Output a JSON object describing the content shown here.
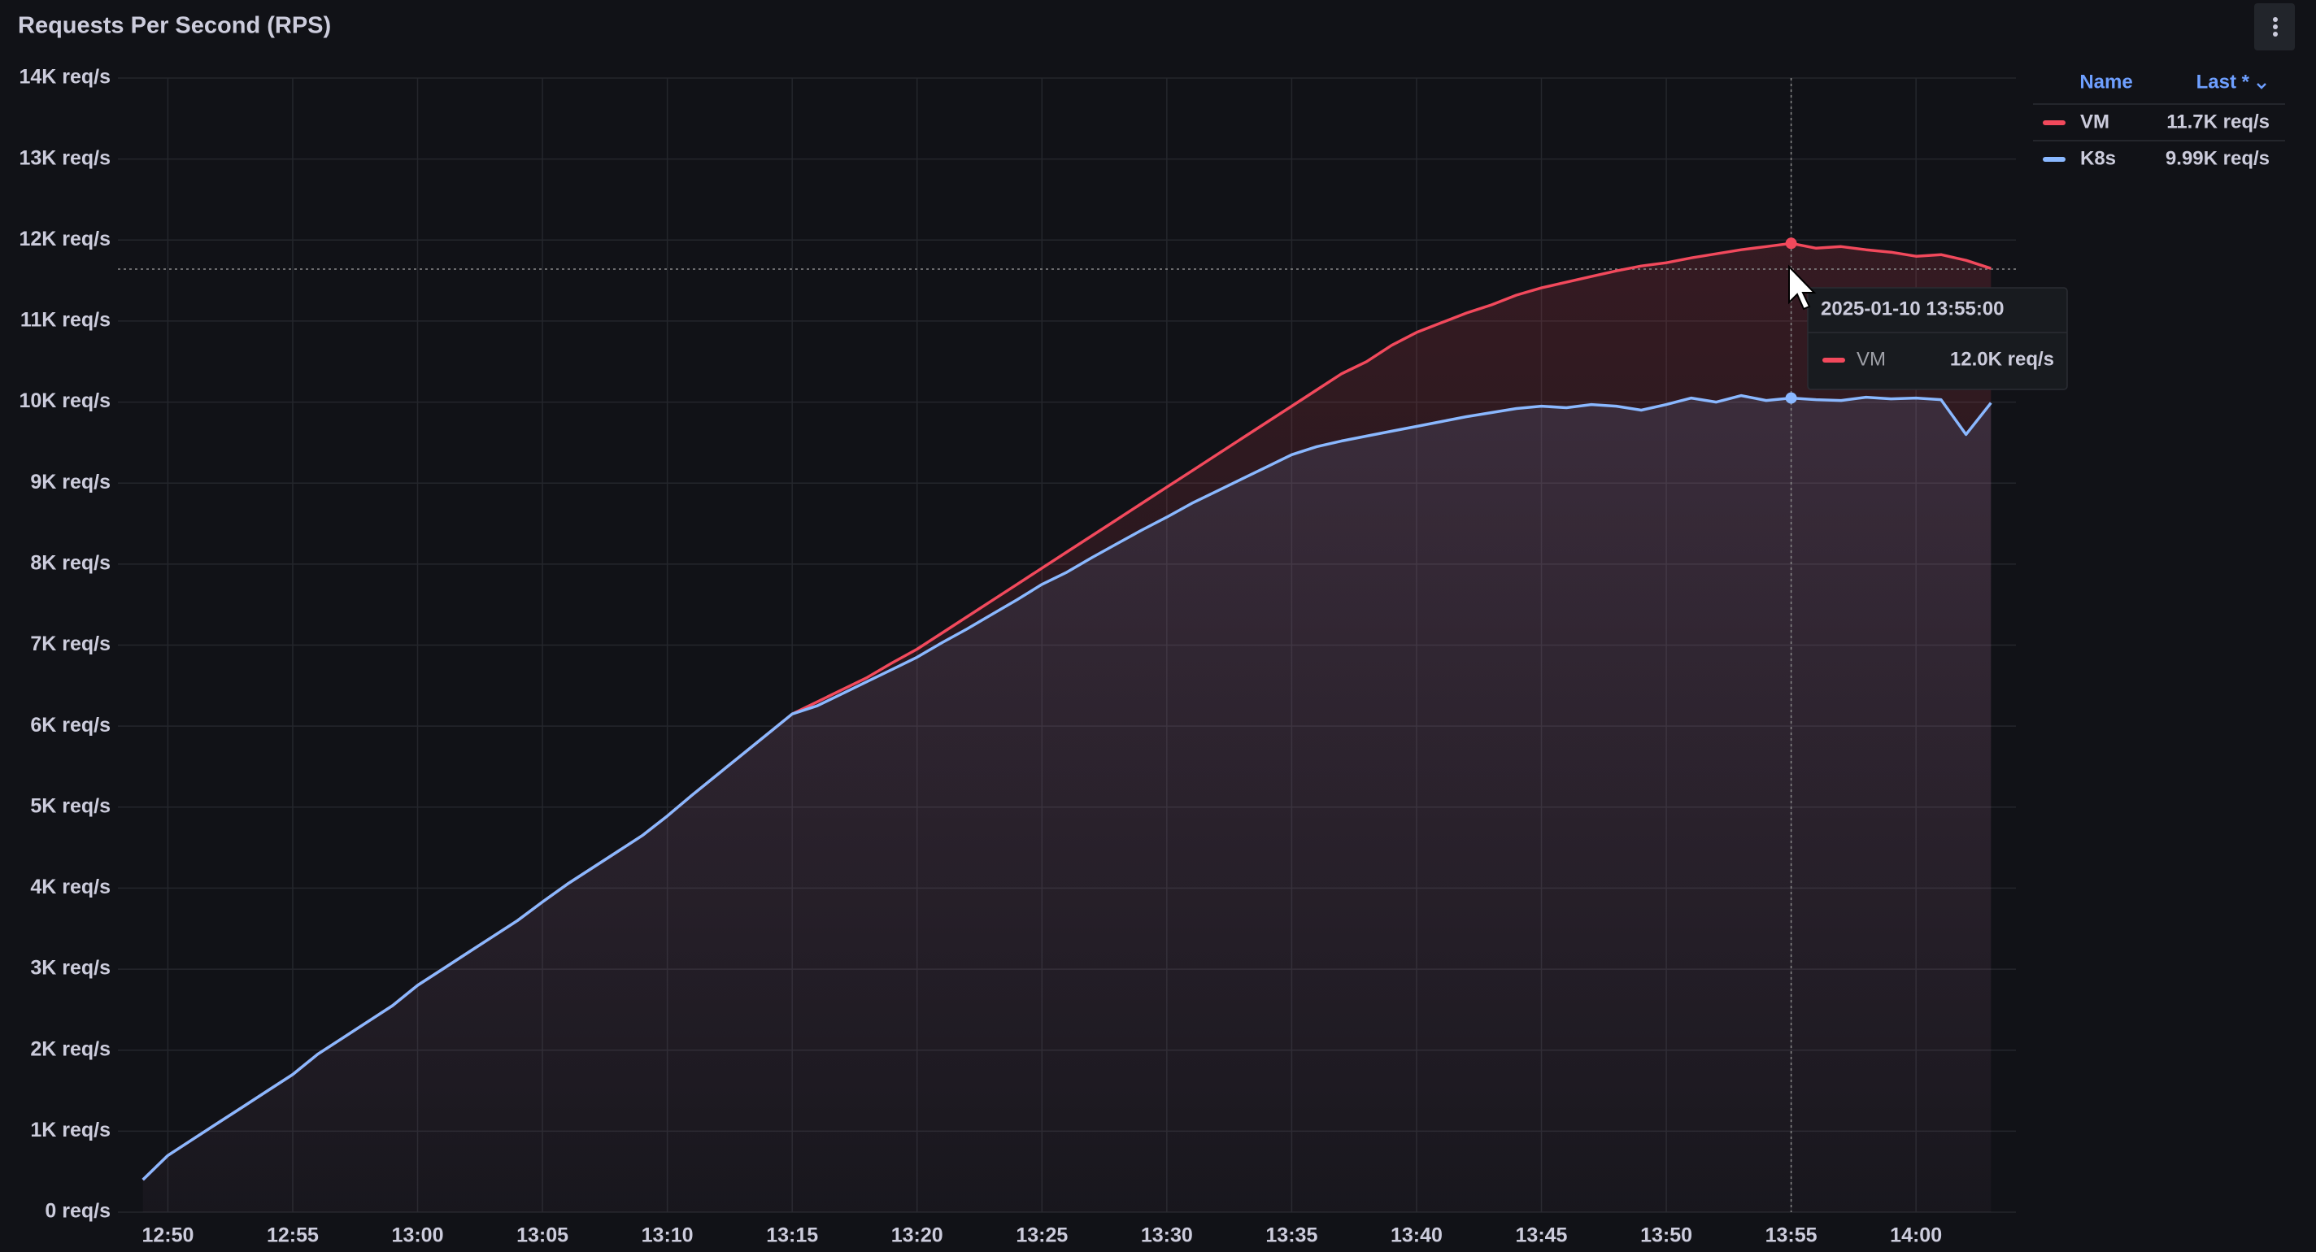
{
  "chart_data": {
    "type": "line",
    "title": "Requests Per Second (RPS)",
    "x": [
      "12:49",
      "12:50",
      "12:51",
      "12:52",
      "12:53",
      "12:54",
      "12:55",
      "12:56",
      "12:57",
      "12:58",
      "12:59",
      "13:00",
      "13:01",
      "13:02",
      "13:03",
      "13:04",
      "13:05",
      "13:06",
      "13:07",
      "13:08",
      "13:09",
      "13:10",
      "13:11",
      "13:12",
      "13:13",
      "13:14",
      "13:15",
      "13:16",
      "13:17",
      "13:18",
      "13:19",
      "13:20",
      "13:21",
      "13:22",
      "13:23",
      "13:24",
      "13:25",
      "13:26",
      "13:27",
      "13:28",
      "13:29",
      "13:30",
      "13:31",
      "13:32",
      "13:33",
      "13:34",
      "13:35",
      "13:36",
      "13:37",
      "13:38",
      "13:39",
      "13:40",
      "13:41",
      "13:42",
      "13:43",
      "13:44",
      "13:45",
      "13:46",
      "13:47",
      "13:48",
      "13:49",
      "13:50",
      "13:51",
      "13:52",
      "13:53",
      "13:54",
      "13:55",
      "13:56",
      "13:57",
      "13:58",
      "13:59",
      "14:00",
      "14:01",
      "14:02",
      "14:03"
    ],
    "series": [
      {
        "name": "VM",
        "color": "#f2495c",
        "last_label": "11.7K req/s",
        "values": [
          400,
          700,
          900,
          1100,
          1300,
          1500,
          1700,
          1950,
          2150,
          2350,
          2550,
          2800,
          3000,
          3200,
          3400,
          3600,
          3830,
          4050,
          4250,
          4450,
          4650,
          4890,
          5150,
          5400,
          5650,
          5900,
          6150,
          6300,
          6450,
          6600,
          6780,
          6950,
          7150,
          7350,
          7550,
          7750,
          7950,
          8150,
          8350,
          8550,
          8750,
          8950,
          9150,
          9350,
          9550,
          9750,
          9950,
          10150,
          10350,
          10500,
          10700,
          10860,
          10980,
          11100,
          11200,
          11320,
          11410,
          11480,
          11550,
          11620,
          11680,
          11720,
          11780,
          11830,
          11880,
          11920,
          11960,
          11900,
          11920,
          11880,
          11850,
          11800,
          11820,
          11750,
          11650
        ]
      },
      {
        "name": "K8s",
        "color": "#8ab8ff",
        "last_label": "9.99K req/s",
        "values": [
          400,
          700,
          900,
          1100,
          1300,
          1500,
          1700,
          1950,
          2150,
          2350,
          2550,
          2800,
          3000,
          3200,
          3400,
          3600,
          3830,
          4050,
          4250,
          4450,
          4650,
          4890,
          5150,
          5400,
          5650,
          5900,
          6150,
          6250,
          6400,
          6550,
          6700,
          6850,
          7030,
          7200,
          7380,
          7560,
          7750,
          7900,
          8080,
          8250,
          8420,
          8580,
          8750,
          8900,
          9050,
          9200,
          9350,
          9450,
          9520,
          9580,
          9640,
          9700,
          9760,
          9820,
          9870,
          9920,
          9950,
          9930,
          9970,
          9950,
          9900,
          9970,
          10050,
          10000,
          10080,
          10020,
          10050,
          10030,
          10020,
          10060,
          10040,
          10050,
          10030,
          9600,
          9990
        ]
      }
    ],
    "xlim": [
      "12:48",
      "14:04"
    ],
    "xticks": [
      "12:50",
      "12:55",
      "13:00",
      "13:05",
      "13:10",
      "13:15",
      "13:20",
      "13:25",
      "13:30",
      "13:35",
      "13:40",
      "13:45",
      "13:50",
      "13:55",
      "14:00"
    ],
    "ylim": [
      0,
      14000
    ],
    "yticks": [
      {
        "value": 0,
        "label": "0 req/s"
      },
      {
        "value": 1000,
        "label": "1K req/s"
      },
      {
        "value": 2000,
        "label": "2K req/s"
      },
      {
        "value": 3000,
        "label": "3K req/s"
      },
      {
        "value": 4000,
        "label": "4K req/s"
      },
      {
        "value": 5000,
        "label": "5K req/s"
      },
      {
        "value": 6000,
        "label": "6K req/s"
      },
      {
        "value": 7000,
        "label": "7K req/s"
      },
      {
        "value": 8000,
        "label": "8K req/s"
      },
      {
        "value": 9000,
        "label": "9K req/s"
      },
      {
        "value": 10000,
        "label": "10K req/s"
      },
      {
        "value": 11000,
        "label": "11K req/s"
      },
      {
        "value": 12000,
        "label": "12K req/s"
      },
      {
        "value": 13000,
        "label": "13K req/s"
      },
      {
        "value": 14000,
        "label": "14K req/s"
      }
    ],
    "grid": true,
    "legend": {
      "position": "right",
      "headers": [
        "Name",
        "Last *"
      ]
    },
    "tooltip": {
      "time": "2025-01-10 13:55:00",
      "x": "13:55",
      "series": "VM",
      "value": 12000,
      "value_label": "12.0K req/s"
    }
  }
}
